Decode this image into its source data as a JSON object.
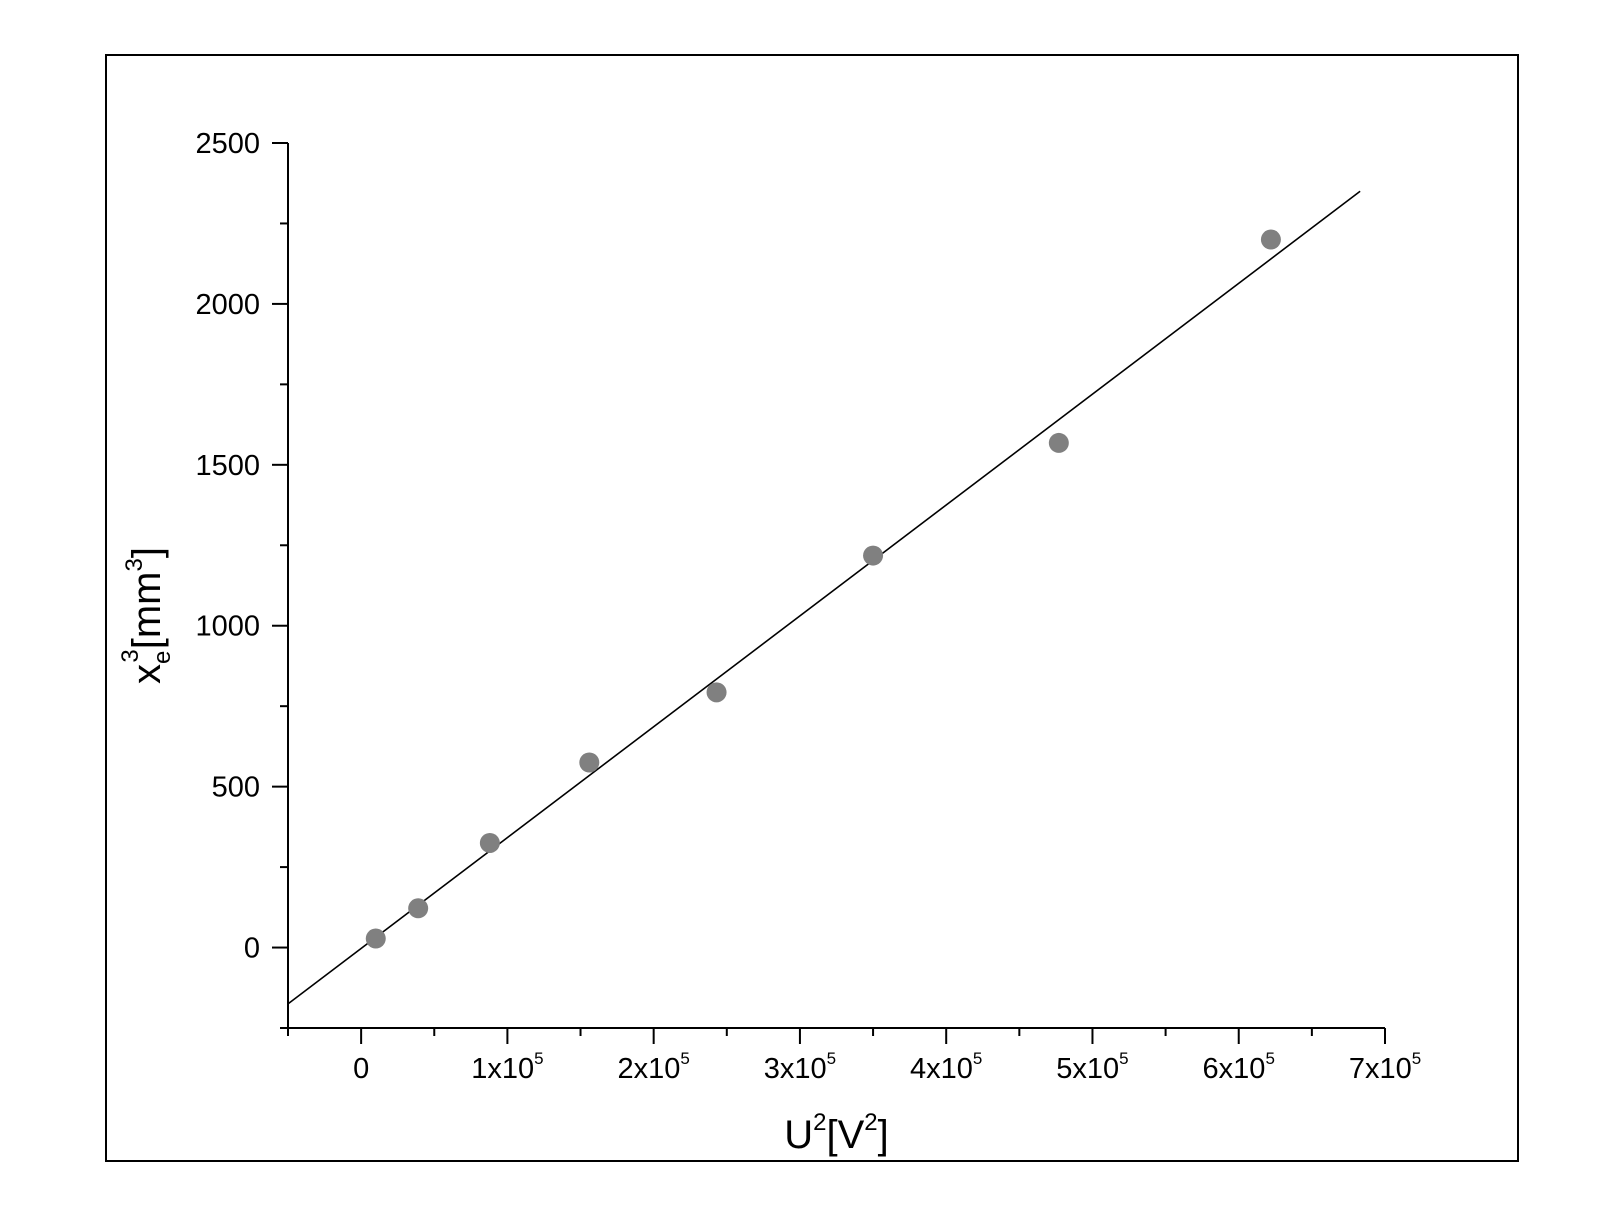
{
  "chart_data": {
    "type": "scatter",
    "title": "",
    "xlabel": {
      "main": "U",
      "sup": "2",
      "bracket_open": "[V",
      "bracket_sup": "2",
      "bracket_close": "]"
    },
    "ylabel": {
      "main": "x",
      "sub": "e",
      "sup": "3",
      "bracket_open": "[mm",
      "bracket_sup": "3",
      "bracket_close": "]"
    },
    "xlim": [
      -50000,
      700000
    ],
    "ylim": [
      -250,
      2500
    ],
    "x_ticks": [
      {
        "value": 0,
        "label": "0",
        "exp": ""
      },
      {
        "value": 100000,
        "label": "1x10",
        "exp": "5"
      },
      {
        "value": 200000,
        "label": "2x10",
        "exp": "5"
      },
      {
        "value": 300000,
        "label": "3x10",
        "exp": "5"
      },
      {
        "value": 400000,
        "label": "4x10",
        "exp": "5"
      },
      {
        "value": 500000,
        "label": "5x10",
        "exp": "5"
      },
      {
        "value": 600000,
        "label": "6x10",
        "exp": "5"
      },
      {
        "value": 700000,
        "label": "7x10",
        "exp": "5"
      }
    ],
    "y_ticks": [
      {
        "value": 0,
        "label": "0"
      },
      {
        "value": 500,
        "label": "500"
      },
      {
        "value": 1000,
        "label": "1000"
      },
      {
        "value": 1500,
        "label": "1500"
      },
      {
        "value": 2000,
        "label": "2000"
      },
      {
        "value": 2500,
        "label": "2500"
      }
    ],
    "series": [
      {
        "kind": "points",
        "color": "#808080",
        "points": [
          {
            "x": 10000,
            "y": 28
          },
          {
            "x": 39000,
            "y": 122
          },
          {
            "x": 88000,
            "y": 325
          },
          {
            "x": 156000,
            "y": 575
          },
          {
            "x": 243000,
            "y": 793
          },
          {
            "x": 350000,
            "y": 1218
          },
          {
            "x": 477000,
            "y": 1568
          },
          {
            "x": 622000,
            "y": 2200
          }
        ]
      },
      {
        "kind": "fit-line",
        "color": "#000000",
        "points": [
          {
            "x": -50000,
            "y": -175
          },
          {
            "x": 683000,
            "y": 2350
          }
        ]
      }
    ],
    "grid": false,
    "legend": "none"
  }
}
